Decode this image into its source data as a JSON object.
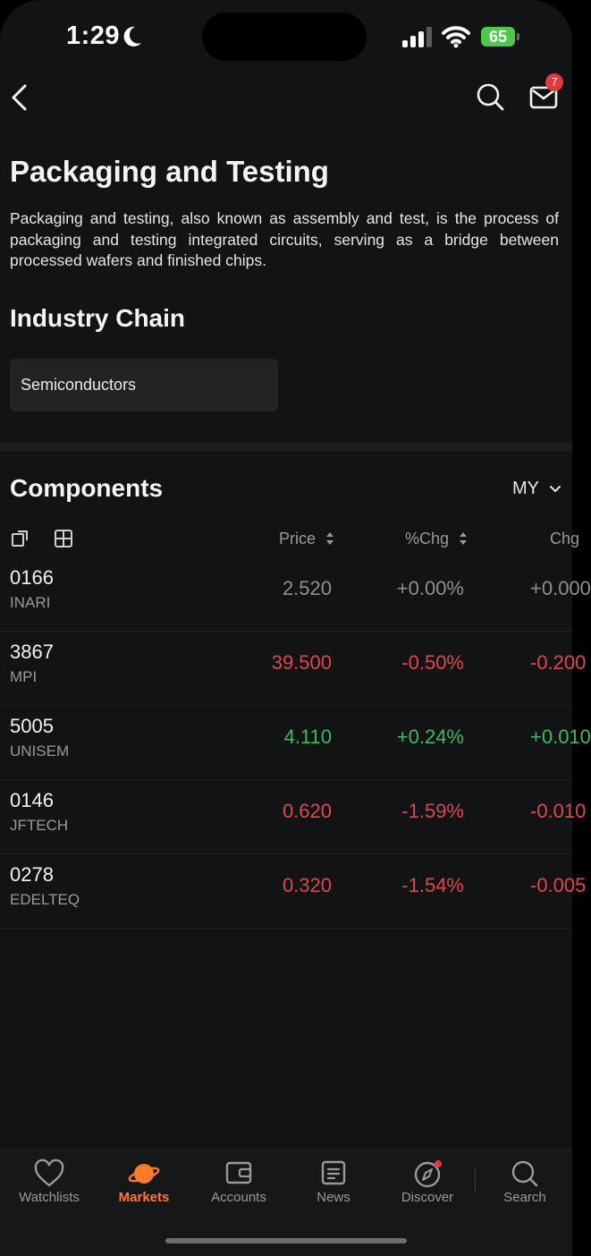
{
  "status": {
    "time": "1:29",
    "battery": "65"
  },
  "header": {
    "mail_badge": "7"
  },
  "page": {
    "title": "Packaging and Testing",
    "description": "Packaging and testing, also known as assembly and test, is the process of packaging and testing integrated circuits, serving as a bridge between processed wafers and finished chips.",
    "chain_heading": "Industry Chain",
    "chain_item": "Semiconductors"
  },
  "components": {
    "title": "Components",
    "market": "MY",
    "columns": {
      "price": "Price",
      "pct": "%Chg",
      "chg": "Chg"
    },
    "rows": [
      {
        "code": "0166",
        "name": "INARI",
        "price": "2.520",
        "pct": "+0.00%",
        "chg": "+0.000",
        "trend": "flat"
      },
      {
        "code": "3867",
        "name": "MPI",
        "price": "39.500",
        "pct": "-0.50%",
        "chg": "-0.200",
        "trend": "down"
      },
      {
        "code": "5005",
        "name": "UNISEM",
        "price": "4.110",
        "pct": "+0.24%",
        "chg": "+0.010",
        "trend": "up"
      },
      {
        "code": "0146",
        "name": "JFTECH",
        "price": "0.620",
        "pct": "-1.59%",
        "chg": "-0.010",
        "trend": "down"
      },
      {
        "code": "0278",
        "name": "EDELTEQ",
        "price": "0.320",
        "pct": "-1.54%",
        "chg": "-0.005",
        "trend": "down"
      }
    ]
  },
  "tabbar": [
    {
      "label": "Watchlists",
      "icon": "heart-icon"
    },
    {
      "label": "Markets",
      "icon": "planet-icon"
    },
    {
      "label": "Accounts",
      "icon": "wallet-icon"
    },
    {
      "label": "News",
      "icon": "news-icon"
    },
    {
      "label": "Discover",
      "icon": "compass-icon"
    },
    {
      "label": "Search",
      "icon": "search-icon"
    }
  ],
  "colors": {
    "accent": "#ff7a2a",
    "down": "#e0474c",
    "up": "#3fb95e",
    "flat": "#8d8f93"
  }
}
